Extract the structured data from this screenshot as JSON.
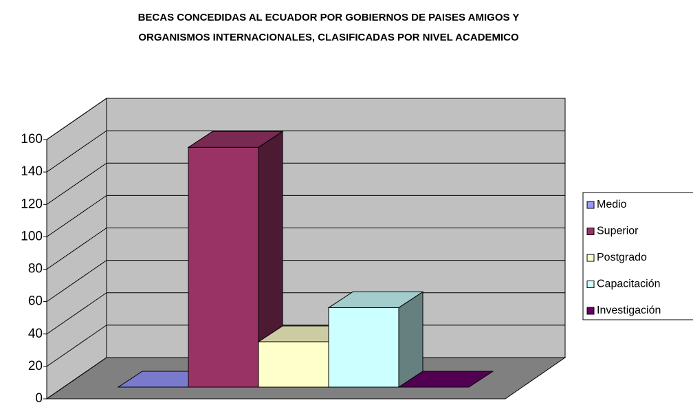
{
  "chart_data": {
    "type": "bar3d",
    "title": [
      "BECAS CONCEDIDAS AL ECUADOR POR GOBIERNOS DE PAISES AMIGOS Y",
      "ORGANISMOS INTERNACIONALES, CLASIFICADAS POR NIVEL ACADEMICO"
    ],
    "categories": [
      null
    ],
    "series": [
      {
        "name": "Medio",
        "color": "#9999ff",
        "values": [
          0
        ]
      },
      {
        "name": "Superior",
        "color": "#993366",
        "values": [
          148
        ]
      },
      {
        "name": "Postgrado",
        "color": "#ffffcc",
        "values": [
          28
        ]
      },
      {
        "name": "Capacitación",
        "color": "#ccffff",
        "values": [
          49
        ]
      },
      {
        "name": "Investigación",
        "color": "#660066",
        "values": [
          0
        ]
      }
    ],
    "ylim": [
      0,
      160
    ],
    "yticks": [
      0,
      20,
      40,
      60,
      80,
      100,
      120,
      140,
      160
    ],
    "grid": true,
    "legend": "right"
  }
}
